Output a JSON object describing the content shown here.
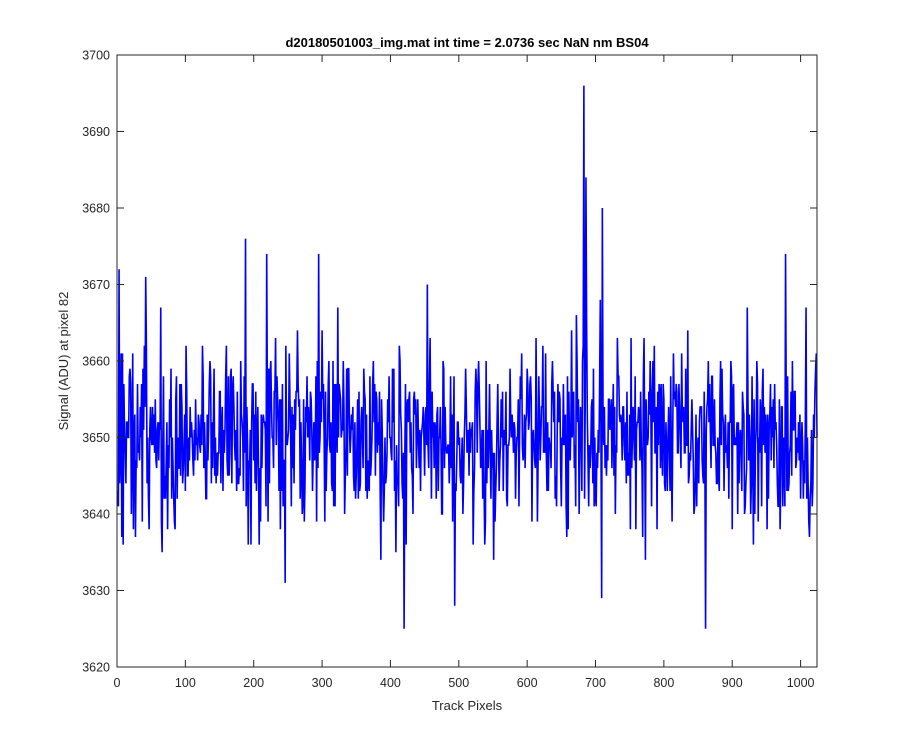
{
  "chart_data": {
    "type": "line",
    "title": "d20180501003_img.mat int time = 2.0736 sec  NaN nm BS04",
    "xlabel": "Track Pixels",
    "ylabel": "Signal (ADU) at pixel 82",
    "xlim": [
      0,
      1024
    ],
    "ylim": [
      3620,
      3700
    ],
    "xticks": [
      0,
      100,
      200,
      300,
      400,
      500,
      600,
      700,
      800,
      900,
      1000
    ],
    "xtick_labels": [
      "0",
      "100",
      "200",
      "300",
      "400",
      "500",
      "600",
      "700",
      "800",
      "900",
      "1000"
    ],
    "yticks": [
      3620,
      3630,
      3640,
      3650,
      3660,
      3670,
      3680,
      3690,
      3700
    ],
    "ytick_labels": [
      "3620",
      "3630",
      "3640",
      "3650",
      "3660",
      "3670",
      "3680",
      "3690",
      "3700"
    ],
    "grid": false,
    "legend": "none",
    "series": [
      {
        "color": "#0000ff",
        "points": {
          "n": 1024,
          "x_start": 1,
          "x_step": 1,
          "baseline": 3650,
          "noise_std": 6,
          "value_min": 3625,
          "value_max": 3696,
          "notable_values": [
            {
              "x": 3,
              "y": 3672
            },
            {
              "x": 42,
              "y": 3671
            },
            {
              "x": 188,
              "y": 3676
            },
            {
              "x": 219,
              "y": 3674
            },
            {
              "x": 246,
              "y": 3631
            },
            {
              "x": 295,
              "y": 3674
            },
            {
              "x": 420,
              "y": 3625
            },
            {
              "x": 494,
              "y": 3628
            },
            {
              "x": 683,
              "y": 3696
            },
            {
              "x": 686,
              "y": 3684
            },
            {
              "x": 709,
              "y": 3629
            },
            {
              "x": 710,
              "y": 3680
            },
            {
              "x": 861,
              "y": 3625
            },
            {
              "x": 978,
              "y": 3674
            }
          ]
        }
      }
    ]
  }
}
